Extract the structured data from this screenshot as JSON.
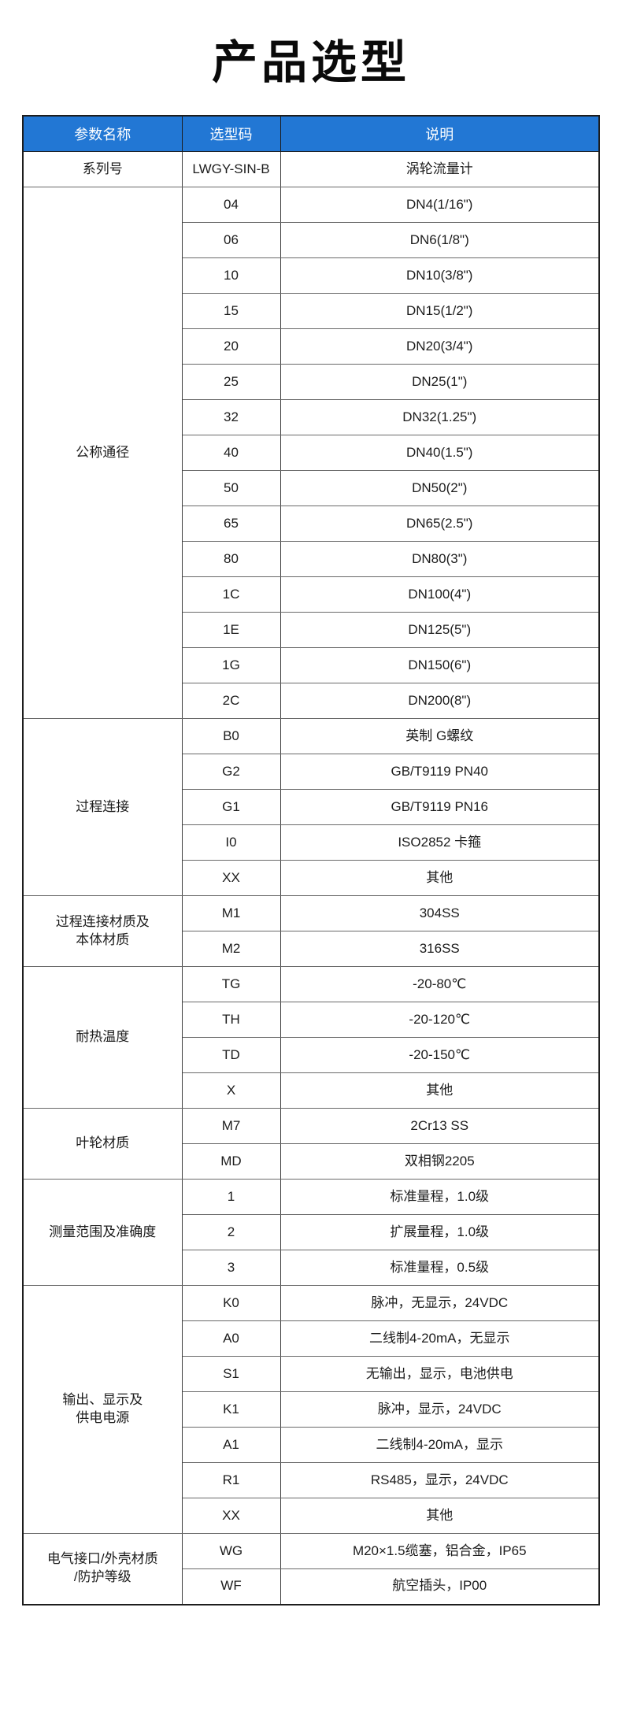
{
  "title": "产品选型",
  "colors": {
    "header_bg": "#2277d4",
    "header_text": "#ffffff",
    "title_text": "#0a0a0a"
  },
  "table": {
    "headers": [
      "参数名称",
      "选型码",
      "说明"
    ],
    "sections": [
      {
        "param_lines": [
          "系列号"
        ],
        "rows": [
          {
            "code": "LWGY-SIN-B",
            "desc": "涡轮流量计"
          }
        ]
      },
      {
        "param_lines": [
          "公称通径"
        ],
        "rows": [
          {
            "code": "04",
            "desc": "DN4(1/16\")"
          },
          {
            "code": "06",
            "desc": "DN6(1/8\")"
          },
          {
            "code": "10",
            "desc": "DN10(3/8\")"
          },
          {
            "code": "15",
            "desc": "DN15(1/2\")"
          },
          {
            "code": "20",
            "desc": "DN20(3/4\")"
          },
          {
            "code": "25",
            "desc": "DN25(1\")"
          },
          {
            "code": "32",
            "desc": "DN32(1.25\")"
          },
          {
            "code": "40",
            "desc": "DN40(1.5\")"
          },
          {
            "code": "50",
            "desc": "DN50(2\")"
          },
          {
            "code": "65",
            "desc": "DN65(2.5\")"
          },
          {
            "code": "80",
            "desc": "DN80(3\")"
          },
          {
            "code": "1C",
            "desc": "DN100(4\")"
          },
          {
            "code": "1E",
            "desc": "DN125(5\")"
          },
          {
            "code": "1G",
            "desc": "DN150(6\")"
          },
          {
            "code": "2C",
            "desc": "DN200(8\")"
          }
        ]
      },
      {
        "param_lines": [
          "过程连接"
        ],
        "rows": [
          {
            "code": "B0",
            "desc": "英制 G螺纹"
          },
          {
            "code": "G2",
            "desc": "GB/T9119 PN40"
          },
          {
            "code": "G1",
            "desc": "GB/T9119 PN16"
          },
          {
            "code": "I0",
            "desc": "ISO2852 卡箍"
          },
          {
            "code": "XX",
            "desc": "其他"
          }
        ]
      },
      {
        "param_lines": [
          "过程连接材质及",
          "本体材质"
        ],
        "rows": [
          {
            "code": "M1",
            "desc": "304SS"
          },
          {
            "code": "M2",
            "desc": "316SS"
          }
        ]
      },
      {
        "param_lines": [
          "耐热温度"
        ],
        "rows": [
          {
            "code": "TG",
            "desc": "-20-80℃"
          },
          {
            "code": "TH",
            "desc": "-20-120℃"
          },
          {
            "code": "TD",
            "desc": "-20-150℃"
          },
          {
            "code": "X",
            "desc": "其他"
          }
        ]
      },
      {
        "param_lines": [
          "叶轮材质"
        ],
        "rows": [
          {
            "code": "M7",
            "desc": "2Cr13 SS"
          },
          {
            "code": "MD",
            "desc": "双相钢2205"
          }
        ]
      },
      {
        "param_lines": [
          "测量范围及准确度"
        ],
        "rows": [
          {
            "code": "1",
            "desc": "标准量程，1.0级"
          },
          {
            "code": "2",
            "desc": "扩展量程，1.0级"
          },
          {
            "code": "3",
            "desc": "标准量程，0.5级"
          }
        ]
      },
      {
        "param_lines": [
          "输出、显示及",
          "供电电源"
        ],
        "rows": [
          {
            "code": "K0",
            "desc": "脉冲，无显示，24VDC"
          },
          {
            "code": "A0",
            "desc": "二线制4-20mA，无显示"
          },
          {
            "code": "S1",
            "desc": "无输出，显示，电池供电"
          },
          {
            "code": "K1",
            "desc": "脉冲，显示，24VDC"
          },
          {
            "code": "A1",
            "desc": "二线制4-20mA，显示"
          },
          {
            "code": "R1",
            "desc": "RS485，显示，24VDC"
          },
          {
            "code": "XX",
            "desc": "其他"
          }
        ]
      },
      {
        "param_lines": [
          "电气接口/外壳材质",
          "/防护等级"
        ],
        "rows": [
          {
            "code": "WG",
            "desc": "M20×1.5缆塞，铝合金，IP65"
          },
          {
            "code": "WF",
            "desc": "航空插头，IP00"
          }
        ]
      }
    ]
  }
}
